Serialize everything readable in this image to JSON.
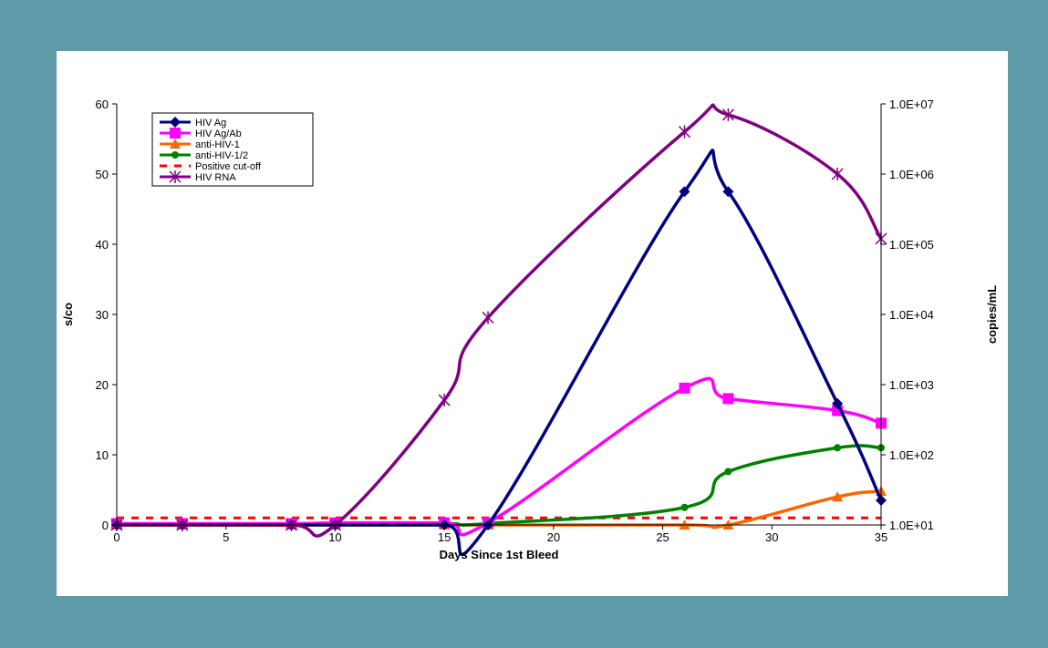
{
  "chart_data": {
    "type": "line",
    "xlabel": "Days Since 1st Bleed",
    "ylabel": "s/co",
    "y2label": "copies/mL",
    "xlim": [
      0,
      35
    ],
    "ylim": [
      0,
      60
    ],
    "y2_scale": "log",
    "y2lim": [
      10,
      10000000
    ],
    "x_ticks": [
      "0",
      "5",
      "10",
      "15",
      "20",
      "25",
      "30",
      "35"
    ],
    "y_ticks": [
      "0",
      "10",
      "20",
      "30",
      "40",
      "50",
      "60"
    ],
    "y2_ticks": [
      "1.0E+01",
      "1.0E+02",
      "1.0E+03",
      "1.0E+04",
      "1.0E+05",
      "1.0E+06",
      "1.0E+07"
    ],
    "legend_position": "top-left",
    "grid": false,
    "series": [
      {
        "name": "HIV Ag",
        "color": "#000080",
        "marker": "diamond",
        "axis": "left",
        "dash": "",
        "x": [
          0,
          3,
          8,
          10,
          15,
          17,
          26,
          28,
          33,
          35
        ],
        "y": [
          0,
          0,
          0,
          0,
          0,
          0,
          47.5,
          47.5,
          17.3,
          3.5
        ]
      },
      {
        "name": "HIV Ag/Ab",
        "color": "#ff00ff",
        "marker": "square",
        "axis": "left",
        "dash": "",
        "x": [
          0,
          3,
          8,
          10,
          15,
          17,
          26,
          28,
          33,
          35
        ],
        "y": [
          0.2,
          0.2,
          0.2,
          0.3,
          0.3,
          0.3,
          19.5,
          18,
          16.3,
          14.5
        ]
      },
      {
        "name": "anti-HIV-1",
        "color": "#ff6600",
        "marker": "triangle",
        "axis": "left",
        "dash": "",
        "x": [
          0,
          3,
          8,
          10,
          15,
          17,
          26,
          28,
          33,
          35
        ],
        "y": [
          0,
          0,
          0,
          0,
          0,
          0,
          0,
          0,
          4,
          4.8
        ]
      },
      {
        "name": "anti-HIV-1/2",
        "color": "#008000",
        "marker": "circle",
        "axis": "left",
        "dash": "",
        "x": [
          0,
          3,
          8,
          10,
          15,
          17,
          26,
          28,
          33,
          35
        ],
        "y": [
          0.1,
          0.1,
          0.1,
          0.1,
          0.2,
          0.2,
          2.5,
          7.6,
          11,
          11
        ]
      },
      {
        "name": "Positive cut-off",
        "color": "#ff0000",
        "marker": "none",
        "axis": "left",
        "dash": "8,8",
        "x": [
          0,
          35
        ],
        "y": [
          1,
          1
        ]
      },
      {
        "name": "HIV RNA",
        "color": "#800080",
        "marker": "star",
        "axis": "right",
        "dash": "",
        "x": [
          0,
          3,
          8,
          10,
          15,
          17,
          26,
          28,
          33,
          35
        ],
        "y": [
          10,
          10,
          10,
          10,
          600,
          9000,
          4000000,
          7000000,
          1000000,
          120000
        ]
      }
    ]
  }
}
